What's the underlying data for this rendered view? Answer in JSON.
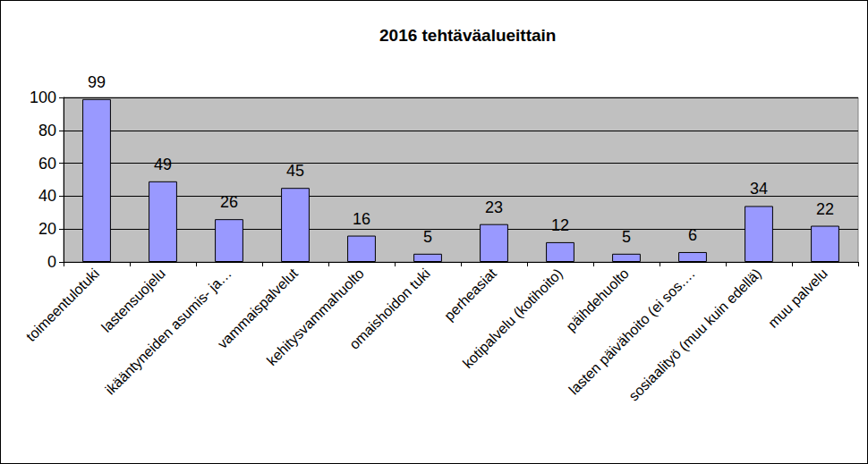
{
  "chart_data": {
    "type": "bar",
    "title": "2016 tehtäväalueittain",
    "categories": [
      "toimeentulotuki",
      "lastensuojelu",
      "ikääntyneiden asumis- ja…",
      "vammaispalvelut",
      "kehitysvammahuolto",
      "omaishoidon tuki",
      "perheasiat",
      "kotipalvelu (kotihoito)",
      "päihdehuolto",
      "lasten päivähoito (ei sos.…",
      "sosiaalityö (muu kuin edellä)",
      "muu palvelu"
    ],
    "values": [
      99,
      49,
      26,
      45,
      16,
      5,
      23,
      12,
      5,
      6,
      34,
      22
    ],
    "color": "#9999ff",
    "ylim": [
      0,
      100
    ],
    "yticks": [
      0,
      20,
      40,
      60,
      80,
      100
    ],
    "grid": true,
    "data_labels": true
  }
}
